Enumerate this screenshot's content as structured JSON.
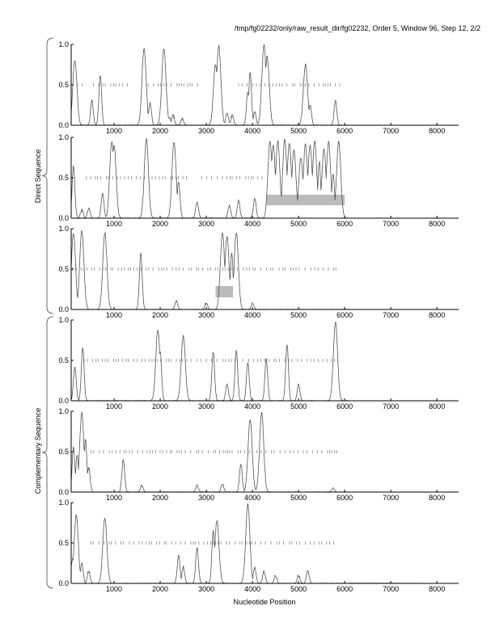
{
  "chart_data": {
    "type": "line",
    "title": "/tmp/fg02232/only/raw_result_dir/fg02232, Order 5, Window 96, Step 12, 2/2",
    "xlabel": "Nucleotide Position",
    "group_labels": [
      "Direct Sequence",
      "Complementary Sequence"
    ],
    "xlim": [
      70,
      8470
    ],
    "ylim": [
      0,
      1
    ],
    "xticks": [
      1000,
      2000,
      3000,
      4000,
      5000,
      6000,
      7000,
      8000
    ],
    "yticks": [
      "0.0",
      "0.5",
      "1.0"
    ],
    "panels": [
      {
        "name": "direct-frame-1",
        "peaks": [
          [
            150,
            0.8
          ],
          [
            520,
            0.3
          ],
          [
            700,
            0.62
          ],
          [
            1650,
            0.95
          ],
          [
            1780,
            0.28
          ],
          [
            2080,
            0.95
          ],
          [
            2200,
            0.1
          ],
          [
            2280,
            0.12
          ],
          [
            2480,
            0.08
          ],
          [
            3200,
            0.75
          ],
          [
            3270,
            0.98
          ],
          [
            3450,
            0.15
          ],
          [
            3560,
            0.12
          ],
          [
            3900,
            0.42
          ],
          [
            3950,
            0.65
          ],
          [
            4050,
            0.16
          ],
          [
            4250,
            1.0
          ],
          [
            4320,
            0.85
          ],
          [
            5150,
            0.75
          ],
          [
            5250,
            0.25
          ],
          [
            5800,
            0.3
          ]
        ],
        "orf_marks": [
          [
            200,
            380
          ],
          [
            550,
            1350
          ],
          [
            1700,
            2900
          ],
          [
            3700,
            5900
          ]
        ],
        "shaded": []
      },
      {
        "name": "direct-frame-2",
        "peaks": [
          [
            120,
            0.65
          ],
          [
            300,
            0.1
          ],
          [
            450,
            0.12
          ],
          [
            750,
            0.3
          ],
          [
            950,
            0.95
          ],
          [
            1000,
            0.9
          ],
          [
            1700,
            0.98
          ],
          [
            2300,
            0.95
          ],
          [
            2400,
            0.45
          ],
          [
            2800,
            0.2
          ],
          [
            3500,
            0.15
          ],
          [
            3700,
            0.22
          ],
          [
            4050,
            0.25
          ],
          [
            4380,
            0.95
          ],
          [
            4450,
            0.9
          ],
          [
            4550,
            0.95
          ],
          [
            4700,
            0.98
          ],
          [
            4800,
            0.92
          ],
          [
            4900,
            0.85
          ],
          [
            5050,
            0.75
          ],
          [
            5150,
            0.92
          ],
          [
            5250,
            0.9
          ],
          [
            5350,
            0.95
          ],
          [
            5450,
            0.7
          ],
          [
            5550,
            0.85
          ],
          [
            5650,
            0.95
          ],
          [
            5750,
            0.55
          ],
          [
            5870,
            0.95
          ]
        ],
        "orf_marks": [
          [
            400,
            2600
          ],
          [
            2900,
            4300
          ]
        ],
        "shaded": [
          [
            4300,
            6000,
            0.16,
            0.29
          ]
        ]
      },
      {
        "name": "direct-frame-3",
        "peaks": [
          [
            120,
            0.95
          ],
          [
            300,
            0.98
          ],
          [
            800,
            0.95
          ],
          [
            1580,
            0.7
          ],
          [
            2350,
            0.1
          ],
          [
            3000,
            0.08
          ],
          [
            3350,
            0.95
          ],
          [
            3450,
            0.9
          ],
          [
            3550,
            0.7
          ],
          [
            3650,
            0.95
          ],
          [
            4000,
            0.08
          ]
        ],
        "orf_marks": [
          [
            100,
            5900
          ]
        ],
        "shaded": [
          [
            3200,
            3580,
            0.15,
            0.29
          ]
        ]
      },
      {
        "name": "complementary-frame-1",
        "peaks": [
          [
            150,
            0.42
          ],
          [
            320,
            0.65
          ],
          [
            1950,
            0.88
          ],
          [
            2000,
            0.6
          ],
          [
            2500,
            0.8
          ],
          [
            3150,
            0.6
          ],
          [
            3450,
            0.2
          ],
          [
            3650,
            0.62
          ],
          [
            3900,
            0.48
          ],
          [
            4300,
            0.52
          ],
          [
            4750,
            0.7
          ],
          [
            5000,
            0.2
          ],
          [
            5800,
            0.98
          ]
        ],
        "orf_marks": [
          [
            350,
            5900
          ]
        ],
        "shaded": []
      },
      {
        "name": "complementary-frame-2",
        "peaks": [
          [
            120,
            0.55
          ],
          [
            200,
            0.45
          ],
          [
            300,
            0.98
          ],
          [
            380,
            0.65
          ],
          [
            450,
            0.3
          ],
          [
            1200,
            0.4
          ],
          [
            1600,
            0.08
          ],
          [
            2800,
            0.08
          ],
          [
            3350,
            0.1
          ],
          [
            3750,
            0.35
          ],
          [
            3950,
            0.9
          ],
          [
            4200,
            0.98
          ],
          [
            5750,
            0.05
          ]
        ],
        "orf_marks": [
          [
            500,
            5900
          ]
        ],
        "shaded": []
      },
      {
        "name": "complementary-frame-3",
        "peaks": [
          [
            100,
            0.3
          ],
          [
            180,
            0.85
          ],
          [
            300,
            0.25
          ],
          [
            450,
            0.15
          ],
          [
            800,
            0.8
          ],
          [
            2400,
            0.35
          ],
          [
            2500,
            0.2
          ],
          [
            2800,
            0.45
          ],
          [
            3150,
            0.65
          ],
          [
            3230,
            0.78
          ],
          [
            3900,
            0.98
          ],
          [
            4050,
            0.2
          ],
          [
            4250,
            0.15
          ],
          [
            4500,
            0.1
          ],
          [
            5000,
            0.1
          ],
          [
            5200,
            0.15
          ]
        ],
        "orf_marks": [
          [
            500,
            5850
          ]
        ],
        "shaded": []
      }
    ]
  }
}
